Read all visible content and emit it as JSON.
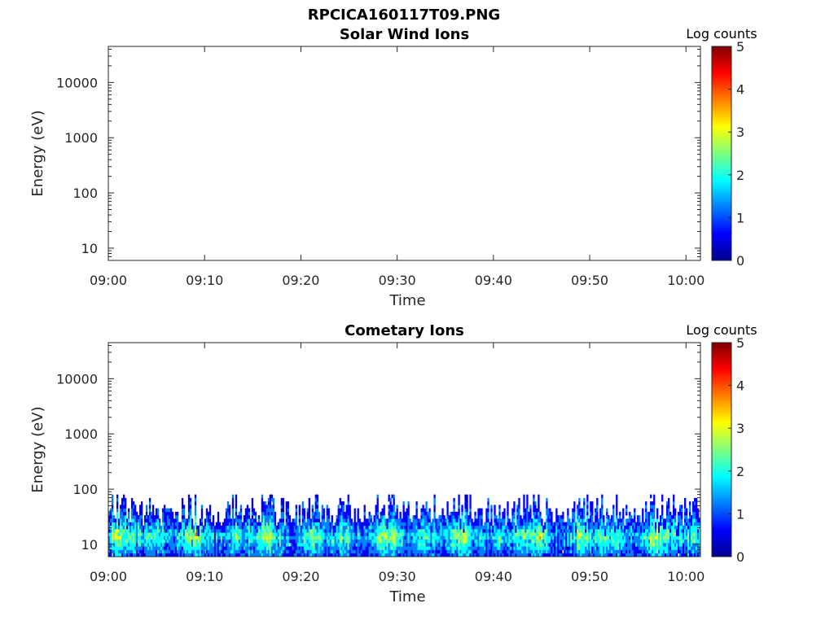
{
  "figure_title": "RPCICA160117T09.PNG",
  "colormap": [
    "#00008f",
    "#0000ff",
    "#0080ff",
    "#00ffff",
    "#80ff80",
    "#ffff00",
    "#ff8000",
    "#ff0000",
    "#800000"
  ],
  "chart_data": [
    {
      "type": "heatmap",
      "title": "Solar Wind Ions",
      "xlabel": "Time",
      "ylabel": "Energy (eV)",
      "x_ticks": [
        "09:00",
        "09:10",
        "09:20",
        "09:30",
        "09:40",
        "09:50",
        "10:00"
      ],
      "x_range_minutes": [
        0,
        61.5
      ],
      "y_scale": "log",
      "y_range": [
        6,
        45000
      ],
      "y_ticks": [
        10,
        100,
        1000,
        10000
      ],
      "y_tick_labels": [
        "10",
        "100",
        "1000",
        "10000"
      ],
      "colorbar_label": "Log counts",
      "colorbar_range": [
        0,
        5
      ],
      "colorbar_ticks": [
        "0",
        "1",
        "2",
        "3",
        "4",
        "5"
      ],
      "data": "empty"
    },
    {
      "type": "heatmap",
      "title": "Cometary Ions",
      "xlabel": "Time",
      "ylabel": "Energy (eV)",
      "x_ticks": [
        "09:00",
        "09:10",
        "09:20",
        "09:30",
        "09:40",
        "09:50",
        "10:00"
      ],
      "x_range_minutes": [
        0,
        61.5
      ],
      "y_scale": "log",
      "y_range": [
        6,
        45000
      ],
      "y_ticks": [
        10,
        100,
        1000,
        10000
      ],
      "y_tick_labels": [
        "10",
        "100",
        "1000",
        "10000"
      ],
      "colorbar_label": "Log counts",
      "colorbar_range": [
        0,
        5
      ],
      "colorbar_ticks": [
        "0",
        "1",
        "2",
        "3",
        "4",
        "5"
      ],
      "energy_extent_eV": [
        6,
        80
      ],
      "peak_energy_eV": 14,
      "peak_log_counts": 2.8
    }
  ]
}
